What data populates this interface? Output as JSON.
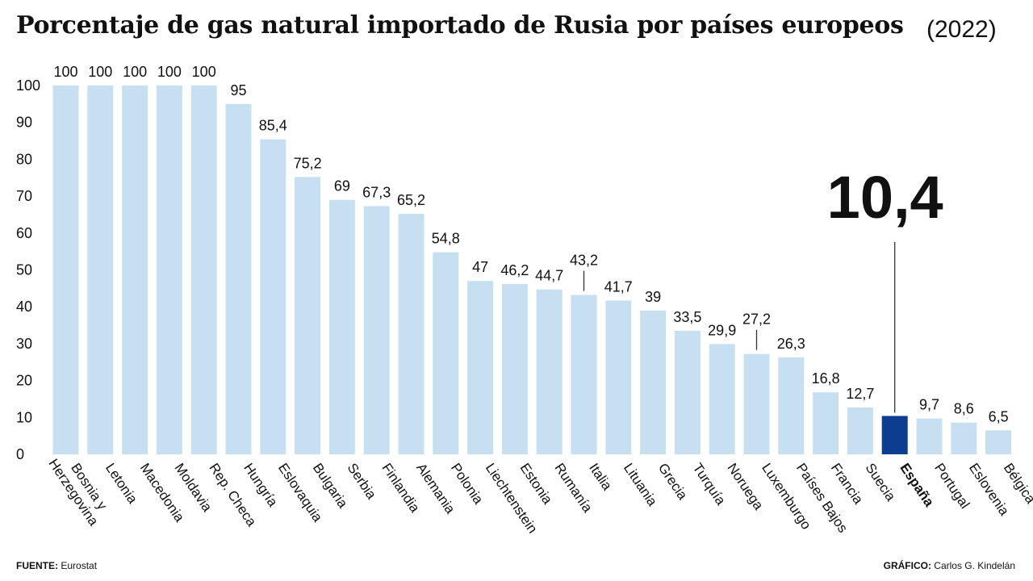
{
  "header": {
    "title": "Porcentaje de gas natural importado de Rusia por países europeos",
    "year": "(2022)"
  },
  "footer": {
    "source_label": "FUENTE:",
    "source_value": "Eurostat",
    "credit_label": "GRÁFICO:",
    "credit_value": "Carlos G. Kindelán"
  },
  "colors": {
    "bar": "#c6e0f1",
    "highlight": "#0b3d91",
    "text": "#111111",
    "leader": "#333333"
  },
  "chart_data": {
    "type": "bar",
    "title": "Porcentaje de gas natural importado de Rusia por países europeos",
    "subtitle": "(2022)",
    "ylim": [
      0,
      100
    ],
    "yticks": [
      0,
      10,
      20,
      30,
      40,
      50,
      60,
      70,
      80,
      90,
      100
    ],
    "grid": false,
    "categories": [
      "Bosnia y Herzegovina",
      "Letonia",
      "Macedonia",
      "Moldavia",
      "Rep. Checa",
      "Hungría",
      "Eslovaquia",
      "Bulgaria",
      "Serbia",
      "Finlandia",
      "Alemania",
      "Polonia",
      "Liechtenstein",
      "Estonia",
      "Rumanía",
      "Italia",
      "Lituania",
      "Grecia",
      "Turquía",
      "Noruega",
      "Luxemburgo",
      "Países Bajos",
      "Francia",
      "Suecia",
      "España",
      "Portugal",
      "Eslovenia",
      "Bélgica"
    ],
    "values": [
      100,
      100,
      100,
      100,
      100,
      95,
      85.4,
      75.2,
      69,
      67.3,
      65.2,
      54.8,
      47,
      46.2,
      44.7,
      43.2,
      41.7,
      39,
      33.5,
      29.9,
      27.2,
      26.3,
      16.8,
      12.7,
      10.4,
      9.7,
      8.6,
      6.5
    ],
    "value_labels": [
      "100",
      "100",
      "100",
      "100",
      "100",
      "95",
      "85,4",
      "75,2",
      "69",
      "67,3",
      "65,2",
      "54,8",
      "47",
      "46,2",
      "44,7",
      "43,2",
      "41,7",
      "39",
      "33,5",
      "29,9",
      "27,2",
      "26,3",
      "16,8",
      "12,7",
      "10,4",
      "9,7",
      "8,6",
      "6,5"
    ],
    "highlight": "España",
    "highlight_label": "10,4"
  }
}
